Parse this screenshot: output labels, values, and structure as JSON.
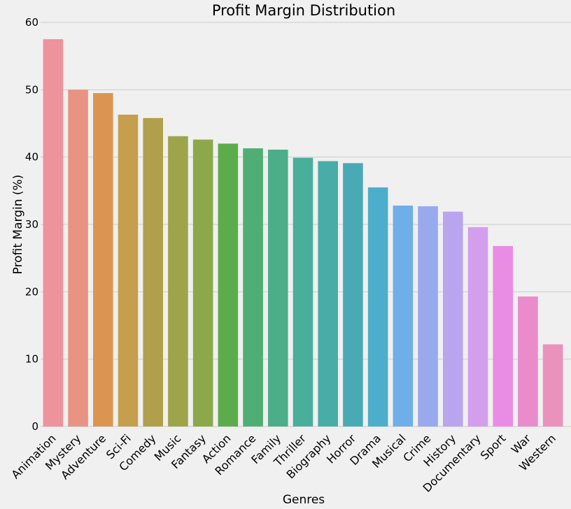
{
  "chart_data": {
    "type": "bar",
    "title": "Profit Margin Distribution",
    "xlabel": "Genres",
    "ylabel": "Profit Margin (%)",
    "ylim": [
      0,
      60
    ],
    "yticks": [
      0,
      10,
      20,
      30,
      40,
      50,
      60
    ],
    "grid": true,
    "categories": [
      "Animation",
      "Mystery",
      "Adventure",
      "Sci-Fi",
      "Comedy",
      "Music",
      "Fantasy",
      "Action",
      "Romance",
      "Family",
      "Thriller",
      "Biography",
      "Horror",
      "Drama",
      "Musical",
      "Crime",
      "History",
      "Documentary",
      "Sport",
      "War",
      "Western"
    ],
    "values": [
      57.5,
      50.0,
      49.5,
      46.3,
      45.8,
      43.1,
      42.6,
      42.0,
      41.3,
      41.1,
      39.9,
      39.4,
      39.1,
      35.5,
      32.8,
      32.7,
      31.9,
      29.6,
      26.8,
      19.3,
      12.2
    ],
    "colors": [
      "#ee929b",
      "#e99383",
      "#dc9550",
      "#c59e4e",
      "#b0a04b",
      "#9ea44a",
      "#8ca84a",
      "#5cac4c",
      "#4fae73",
      "#4bae88",
      "#49ae9a",
      "#48aca7",
      "#49aab5",
      "#4daecb",
      "#6eaee9",
      "#99a9ee",
      "#b8a5ee",
      "#d39fec",
      "#e98ce3",
      "#ea8bcc",
      "#ea92bc"
    ]
  }
}
